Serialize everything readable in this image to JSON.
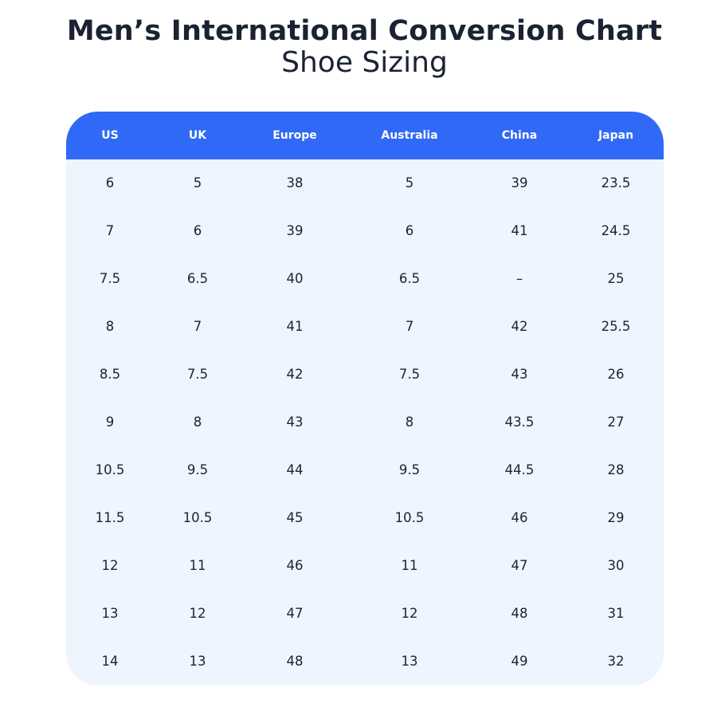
{
  "title": "Men’s International Conversion Chart",
  "subtitle": "Shoe Sizing",
  "colors": {
    "header_bg": "#3069f6",
    "body_bg": "#eef5fe",
    "header_text": "#ffffff",
    "body_text": "#1c2230"
  },
  "table": {
    "headers": [
      "US",
      "UK",
      "Europe",
      "Australia",
      "China",
      "Japan"
    ],
    "rows": [
      [
        "6",
        "5",
        "38",
        "5",
        "39",
        "23.5"
      ],
      [
        "7",
        "6",
        "39",
        "6",
        "41",
        "24.5"
      ],
      [
        "7.5",
        "6.5",
        "40",
        "6.5",
        "–",
        "25"
      ],
      [
        "8",
        "7",
        "41",
        "7",
        "42",
        "25.5"
      ],
      [
        "8.5",
        "7.5",
        "42",
        "7.5",
        "43",
        "26"
      ],
      [
        "9",
        "8",
        "43",
        "8",
        "43.5",
        "27"
      ],
      [
        "10.5",
        "9.5",
        "44",
        "9.5",
        "44.5",
        "28"
      ],
      [
        "11.5",
        "10.5",
        "45",
        "10.5",
        "46",
        "29"
      ],
      [
        "12",
        "11",
        "46",
        "11",
        "47",
        "30"
      ],
      [
        "13",
        "12",
        "47",
        "12",
        "48",
        "31"
      ],
      [
        "14",
        "13",
        "48",
        "13",
        "49",
        "32"
      ]
    ]
  }
}
